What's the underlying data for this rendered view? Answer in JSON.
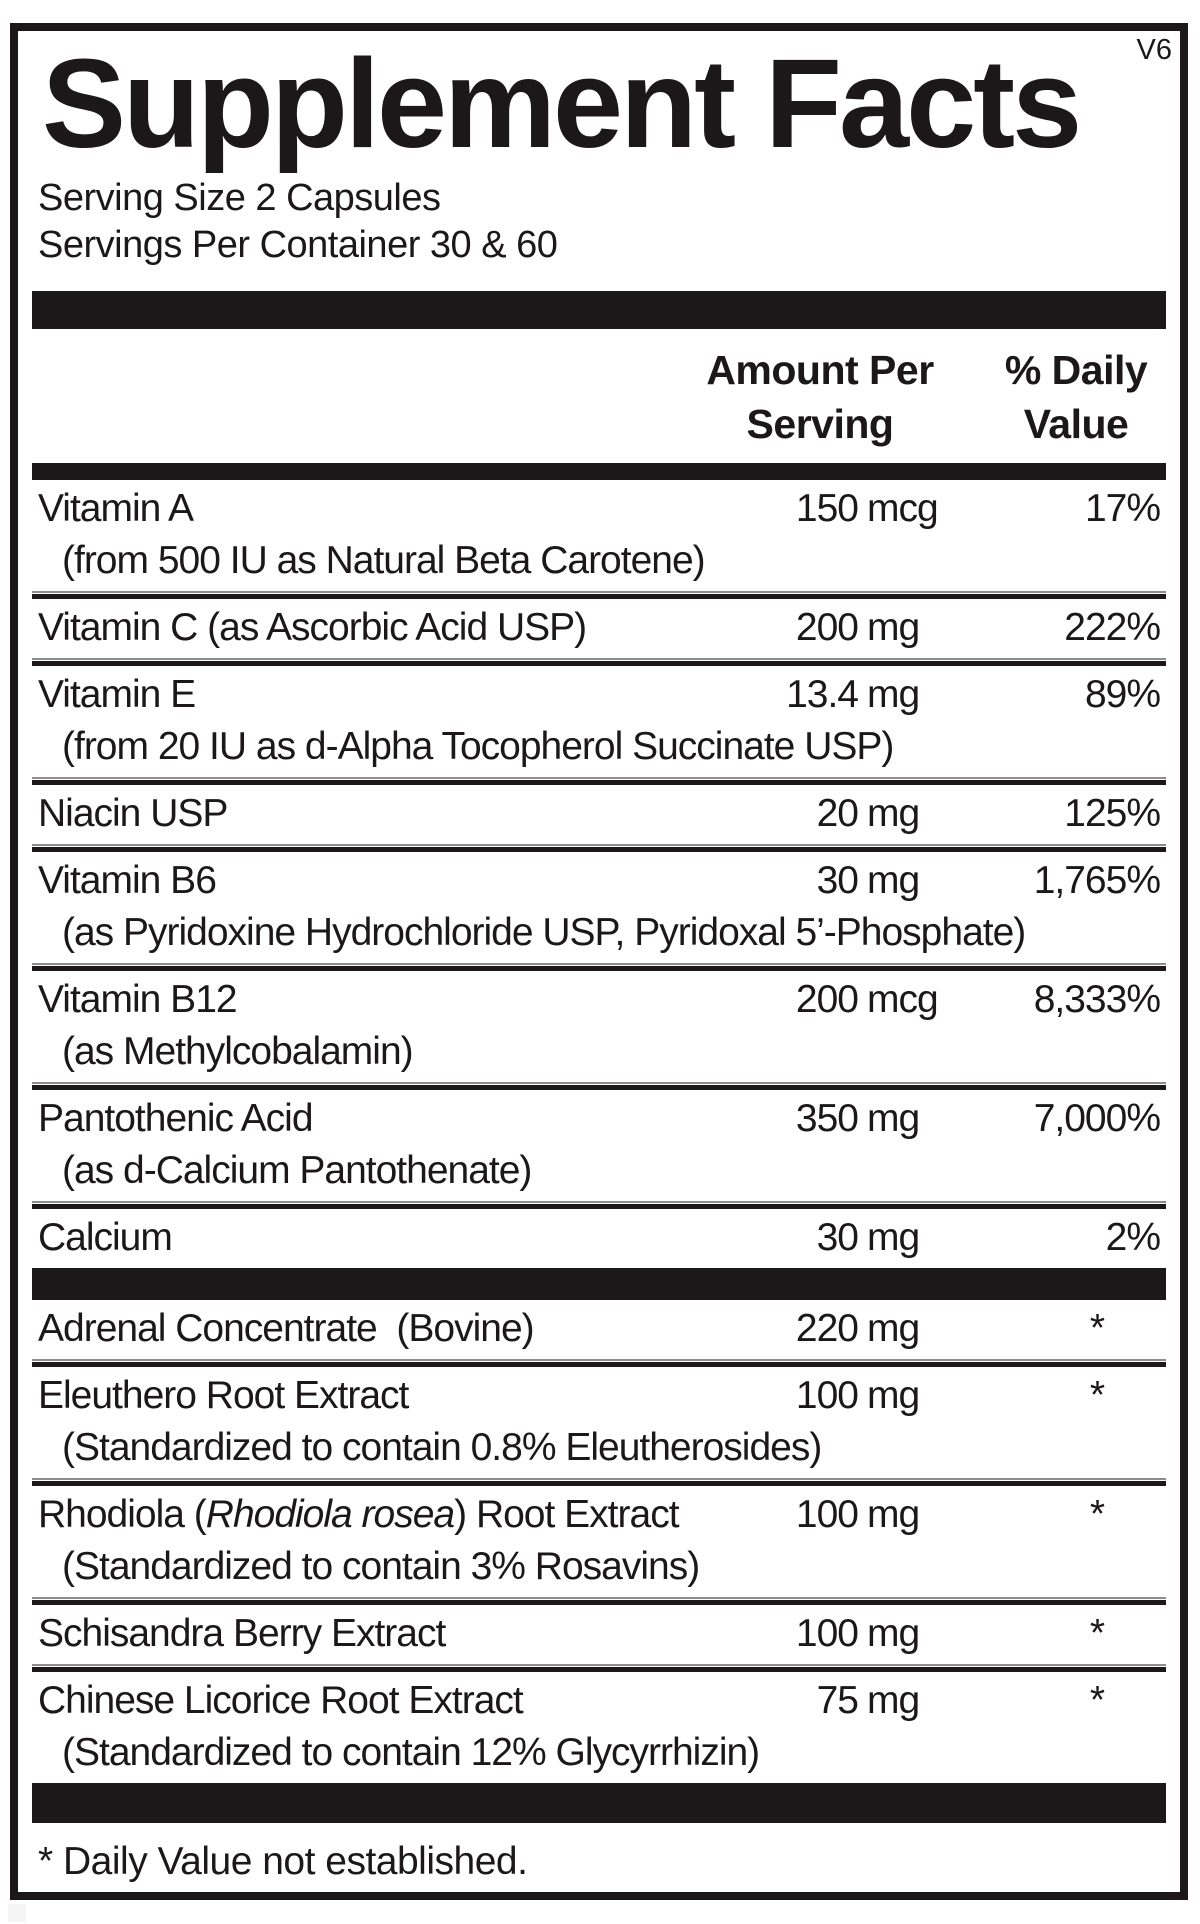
{
  "version_tag": "V6",
  "title": "Supplement Facts",
  "serving": {
    "size": "Serving Size 2 Capsules",
    "per_container": "Servings Per Container 30 & 60"
  },
  "columns": {
    "amount_line1": "Amount Per",
    "amount_line2": "Serving",
    "dv_line1": "% Daily",
    "dv_line2": "Value"
  },
  "vitamins": [
    {
      "name_parts": [
        {
          "t": "Vitamin A"
        }
      ],
      "sub": "(from 500 IU as Natural Beta Carotene)",
      "amount_value": "150",
      "amount_unit": "mcg",
      "daily_value": "17%"
    },
    {
      "name_parts": [
        {
          "t": "Vitamin C (as Ascorbic Acid USP)"
        }
      ],
      "amount_value": "200",
      "amount_unit": "mg",
      "daily_value": "222%"
    },
    {
      "name_parts": [
        {
          "t": "Vitamin E"
        }
      ],
      "sub": "(from 20 IU as d-Alpha Tocopherol Succinate USP)",
      "amount_value": "13.4",
      "amount_unit": "mg",
      "daily_value": "89%"
    },
    {
      "name_parts": [
        {
          "t": "Niacin USP"
        }
      ],
      "amount_value": "20",
      "amount_unit": "mg",
      "daily_value": "125%"
    },
    {
      "name_parts": [
        {
          "t": "Vitamin B6"
        }
      ],
      "sub": "(as Pyridoxine Hydrochloride USP, Pyridoxal 5’-Phosphate)",
      "amount_value": "30",
      "amount_unit": "mg",
      "daily_value": "1,765%"
    },
    {
      "name_parts": [
        {
          "t": "Vitamin B12"
        }
      ],
      "sub": "(as Methylcobalamin)",
      "amount_value": "200",
      "amount_unit": "mcg",
      "daily_value": "8,333%"
    },
    {
      "name_parts": [
        {
          "t": "Pantothenic Acid"
        }
      ],
      "sub": "(as d-Calcium Pantothenate)",
      "amount_value": "350",
      "amount_unit": "mg",
      "daily_value": "7,000%"
    },
    {
      "name_parts": [
        {
          "t": "Calcium"
        }
      ],
      "amount_value": "30",
      "amount_unit": "mg",
      "daily_value": "2%"
    }
  ],
  "botanicals": [
    {
      "name_parts": [
        {
          "t": "Adrenal Concentrate  (Bovine)"
        }
      ],
      "amount_value": "220",
      "amount_unit": "mg",
      "daily_value": "*"
    },
    {
      "name_parts": [
        {
          "t": "Eleuthero Root Extract"
        }
      ],
      "sub": "(Standardized to contain 0.8% Eleutherosides)",
      "amount_value": "100",
      "amount_unit": "mg",
      "daily_value": "*"
    },
    {
      "name_parts": [
        {
          "t": "Rhodiola ("
        },
        {
          "t": "Rhodiola rosea",
          "i": true
        },
        {
          "t": ") Root Extract"
        }
      ],
      "sub": "(Standardized to contain 3% Rosavins)",
      "amount_value": "100",
      "amount_unit": "mg",
      "daily_value": "*"
    },
    {
      "name_parts": [
        {
          "t": "Schisandra Berry Extract"
        }
      ],
      "amount_value": "100",
      "amount_unit": "mg",
      "daily_value": "*"
    },
    {
      "name_parts": [
        {
          "t": "Chinese Licorice Root Extract"
        }
      ],
      "sub": "(Standardized to contain 12% Glycyrrhizin)",
      "amount_value": "75",
      "amount_unit": "mg",
      "daily_value": "*"
    }
  ],
  "footnote": "* Daily Value not established.",
  "colors": {
    "ink": "#1c1819",
    "background": "#ffffff"
  }
}
